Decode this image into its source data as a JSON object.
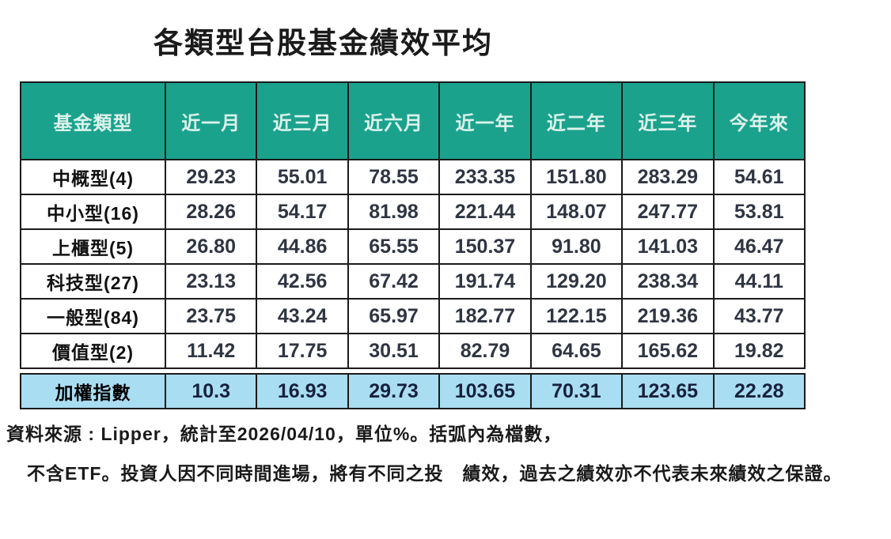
{
  "title": "各類型台股基金績效平均",
  "colors": {
    "header_bg": "#1BA28D",
    "header_text": "#DCF3EB",
    "highlight_row_bg": "#A9DDF2",
    "border": "#1B1B1B",
    "cell_text": "#2F3542",
    "title_text": "#1A1A1A"
  },
  "chart_data": {
    "type": "table",
    "title": "各類型台股基金績效平均",
    "unit": "%",
    "columns": [
      "基金類型",
      "近一月",
      "近三月",
      "近六月",
      "近一年",
      "近二年",
      "近三年",
      "今年來"
    ],
    "rows": [
      {
        "label": "中概型(4)",
        "values": [
          "29.23",
          "55.01",
          "78.55",
          "233.35",
          "151.80",
          "283.29",
          "54.61"
        ]
      },
      {
        "label": "中小型(16)",
        "values": [
          "28.26",
          "54.17",
          "81.98",
          "221.44",
          "148.07",
          "247.77",
          "53.81"
        ]
      },
      {
        "label": "上櫃型(5)",
        "values": [
          "26.80",
          "44.86",
          "65.55",
          "150.37",
          "91.80",
          "141.03",
          "46.47"
        ]
      },
      {
        "label": "科技型(27)",
        "values": [
          "23.13",
          "42.56",
          "67.42",
          "191.74",
          "129.20",
          "238.34",
          "44.11"
        ]
      },
      {
        "label": "一般型(84)",
        "values": [
          "23.75",
          "43.24",
          "65.97",
          "182.77",
          "122.15",
          "219.36",
          "43.77"
        ]
      },
      {
        "label": "價值型(2)",
        "values": [
          "11.42",
          "17.75",
          "30.51",
          "82.79",
          "64.65",
          "165.62",
          "19.82"
        ]
      }
    ],
    "highlight_row": {
      "label": "加權指數",
      "values": [
        "10.3",
        "16.93",
        "29.73",
        "103.65",
        "70.31",
        "123.65",
        "22.28"
      ]
    }
  },
  "footnote": {
    "line1": "資料來源 : Lipper，統計至2026/04/10，單位%。括弧內為檔數，",
    "line2": "不含ETF。投資人因不同時間進場，將有不同之投　績效，過去之績效亦不代表未來績效之保證。"
  }
}
